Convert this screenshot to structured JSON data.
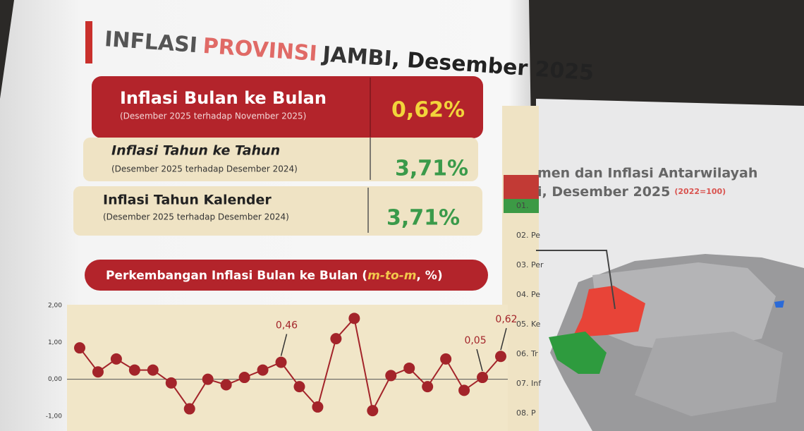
{
  "header": {
    "title_parts": [
      "INFLASI",
      "PROVINSI",
      "JAMBI",
      ", Desember 2025"
    ]
  },
  "boxes": [
    {
      "label": "Inflasi Bulan ke Bulan",
      "sub": "(Desember 2025 terhadap November 2025)",
      "value": "0,62%"
    },
    {
      "label": "Inflasi Tahun ke Tahun",
      "sub": "(Desember 2025 terhadap Desember 2024)",
      "value": "3,71%"
    },
    {
      "label": "Inflasi Tahun Kalender",
      "sub": "(Desember 2025 terhadap Desember 2024)",
      "value": "3,71%"
    }
  ],
  "chart_data": {
    "type": "line",
    "title_parts": [
      "Perkembangan Inflasi Bulan ke Bulan (",
      "m-to-m",
      ", %)"
    ],
    "values": [
      0.85,
      0.2,
      0.55,
      0.25,
      0.25,
      -0.1,
      -0.8,
      0.0,
      -0.15,
      0.05,
      0.25,
      0.46,
      -0.2,
      -0.75,
      1.1,
      1.65,
      -0.85,
      0.1,
      0.3,
      -0.2,
      0.55,
      -0.3,
      0.05,
      0.62
    ],
    "value_labels": [
      null,
      null,
      null,
      null,
      null,
      null,
      null,
      null,
      null,
      null,
      null,
      "0,46",
      null,
      null,
      null,
      null,
      null,
      null,
      null,
      null,
      null,
      null,
      "0,05",
      "0,62"
    ],
    "color": "#a3242a",
    "ylim": [
      -1,
      2
    ],
    "yticks": [
      {
        "value": -1,
        "label": "-1,00"
      },
      {
        "value": 0,
        "label": "0,00"
      },
      {
        "value": 1,
        "label": "1,00"
      },
      {
        "value": 2,
        "label": "2,00"
      }
    ]
  },
  "right_page": {
    "title_line1": "men dan Inflasi Antarwilayah",
    "title_line2": "i, Desember 2025",
    "base": "(2022=100)",
    "list": [
      "01.",
      "02. Pe",
      "03. Per",
      "04. Pe",
      "05. Ke",
      "06. Tr",
      "07. Inf",
      "08. P"
    ]
  }
}
